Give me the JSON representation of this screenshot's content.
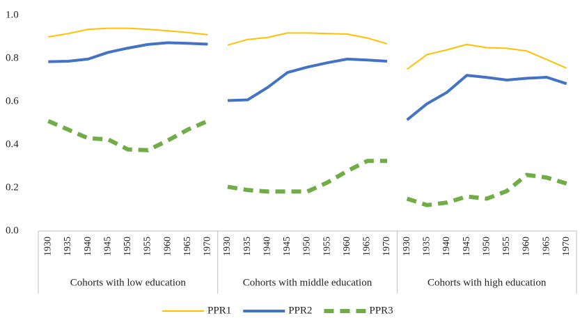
{
  "chart_data": {
    "type": "line",
    "groups": [
      "Cohorts with low education",
      "Cohorts with middle education",
      "Cohorts with high education"
    ],
    "categories": [
      "1930",
      "1935",
      "1940",
      "1945",
      "1950",
      "1955",
      "1960",
      "1965",
      "1970",
      "1930",
      "1935",
      "1940",
      "1945",
      "1950",
      "1955",
      "1960",
      "1965",
      "1970",
      "1930",
      "1935",
      "1940",
      "1945",
      "1950",
      "1955",
      "1960",
      "1965",
      "1970"
    ],
    "series": [
      {
        "name": "PPR1",
        "color": "#ffc000",
        "width": 2,
        "dash": false,
        "values": [
          0.9,
          0.915,
          0.935,
          0.94,
          0.94,
          0.935,
          0.928,
          0.92,
          0.91,
          0.862,
          0.888,
          0.897,
          0.918,
          0.918,
          0.915,
          0.913,
          0.895,
          0.868,
          0.75,
          0.818,
          0.84,
          0.865,
          0.85,
          0.847,
          0.835,
          0.795,
          0.755
        ]
      },
      {
        "name": "PPR2",
        "color": "#4472c4",
        "width": 4,
        "dash": false,
        "values": [
          0.785,
          0.787,
          0.797,
          0.828,
          0.848,
          0.865,
          0.873,
          0.87,
          0.866,
          0.605,
          0.608,
          0.665,
          0.735,
          0.76,
          0.78,
          0.797,
          0.793,
          0.787,
          0.515,
          0.59,
          0.643,
          0.722,
          0.712,
          0.7,
          0.708,
          0.713,
          0.683
        ]
      },
      {
        "name": "PPR3",
        "color": "#70ad47",
        "width": 6,
        "dash": true,
        "values": [
          0.51,
          0.47,
          0.43,
          0.425,
          0.378,
          0.375,
          0.42,
          0.47,
          0.51,
          0.205,
          0.19,
          0.183,
          0.183,
          0.183,
          0.225,
          0.278,
          0.325,
          0.325,
          0.15,
          0.12,
          0.132,
          0.16,
          0.15,
          0.185,
          0.26,
          0.248,
          0.22
        ]
      }
    ],
    "ylim": [
      0,
      1
    ],
    "yticks": [
      {
        "value": 0,
        "label": "0.0"
      },
      0.2,
      0.4,
      0.6,
      0.8,
      {
        "value": 1,
        "label": "1.0"
      }
    ]
  }
}
